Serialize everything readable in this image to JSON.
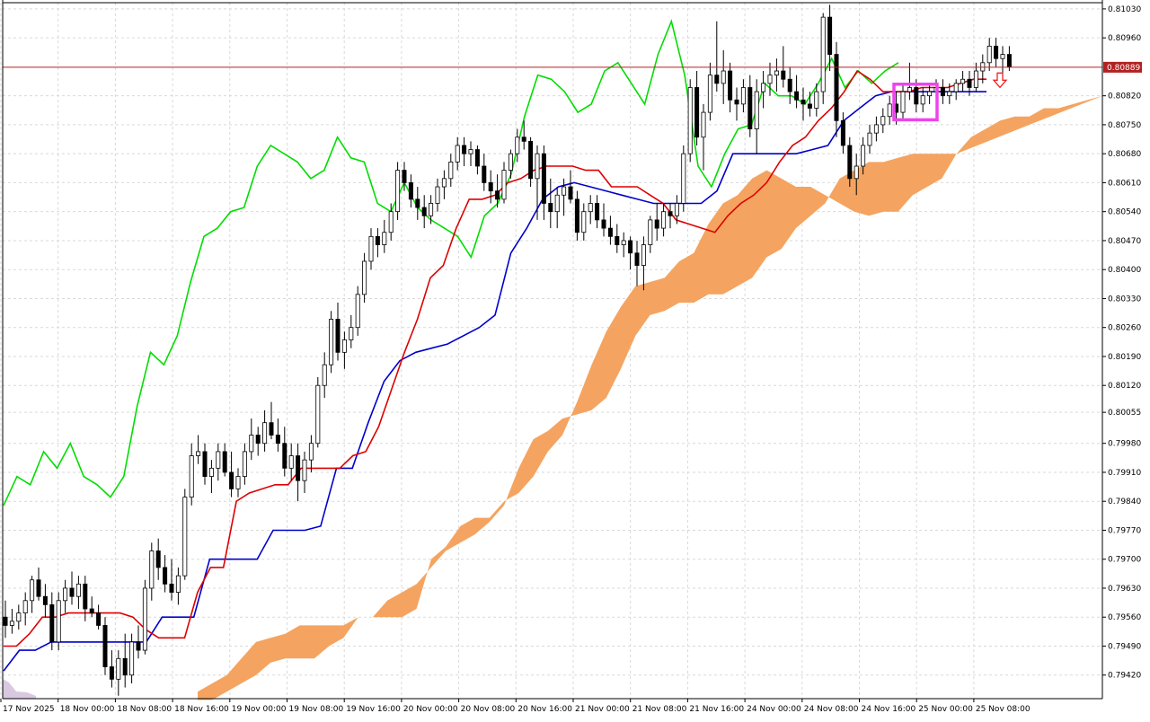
{
  "chart_data": {
    "type": "candlestick",
    "y_axis": {
      "ticks": [
        0.8103,
        0.8096,
        0.8082,
        0.8075,
        0.8068,
        0.8061,
        0.8054,
        0.8047,
        0.804,
        0.8033,
        0.8026,
        0.8019,
        0.8012,
        0.80055,
        0.7998,
        0.7991,
        0.7984,
        0.7977,
        0.797,
        0.7963,
        0.7956,
        0.7949,
        0.7942
      ],
      "tick_labels": [
        "0.81030",
        "0.80960",
        "0.80820",
        "0.80750",
        "0.80680",
        "0.80610",
        "0.80540",
        "0.80470",
        "0.80400",
        "0.80330",
        "0.80260",
        "0.80190",
        "0.80120",
        "0.80055",
        "0.79980",
        "0.79910",
        "0.79840",
        "0.79770",
        "0.79700",
        "0.79630",
        "0.79560",
        "0.79490",
        "0.79420"
      ],
      "range": [
        0.79363,
        0.81045
      ]
    },
    "x_axis": {
      "tick_labels": [
        "17 Nov 2025",
        "18 Nov 00:00",
        "18 Nov 08:00",
        "18 Nov 16:00",
        "19 Nov 00:00",
        "19 Nov 08:00",
        "19 Nov 16:00",
        "20 Nov 00:00",
        "20 Nov 08:00",
        "20 Nov 16:00",
        "21 Nov 00:00",
        "21 Nov 08:00",
        "21 Nov 16:00",
        "24 Nov 00:00",
        "24 Nov 08:00",
        "24 Nov 16:00",
        "25 Nov 00:00",
        "25 Nov 08:00"
      ]
    },
    "current_price": {
      "value": 0.80889,
      "label": "0.80889",
      "color": "#b22222"
    },
    "grid": true,
    "candles": [
      [
        0.7956,
        0.796,
        0.7951,
        0.7954
      ],
      [
        0.7954,
        0.7958,
        0.7952,
        0.7955
      ],
      [
        0.7955,
        0.7959,
        0.7953,
        0.7957
      ],
      [
        0.7957,
        0.7962,
        0.7954,
        0.796
      ],
      [
        0.796,
        0.7966,
        0.7957,
        0.7965
      ],
      [
        0.7965,
        0.7968,
        0.796,
        0.7961
      ],
      [
        0.7961,
        0.7964,
        0.7956,
        0.7959
      ],
      [
        0.7959,
        0.7962,
        0.7948,
        0.795
      ],
      [
        0.795,
        0.7962,
        0.7948,
        0.796
      ],
      [
        0.796,
        0.7965,
        0.7957,
        0.7963
      ],
      [
        0.7963,
        0.7967,
        0.7959,
        0.7961
      ],
      [
        0.7961,
        0.7966,
        0.7958,
        0.7964
      ],
      [
        0.7964,
        0.7966,
        0.7955,
        0.7958
      ],
      [
        0.7958,
        0.7961,
        0.7956,
        0.7957
      ],
      [
        0.7957,
        0.7959,
        0.7953,
        0.7954
      ],
      [
        0.7954,
        0.7956,
        0.7942,
        0.7944
      ],
      [
        0.7944,
        0.7948,
        0.7939,
        0.7941
      ],
      [
        0.7941,
        0.7948,
        0.7937,
        0.7946
      ],
      [
        0.7946,
        0.7952,
        0.7939,
        0.7942
      ],
      [
        0.7942,
        0.7952,
        0.794,
        0.795
      ],
      [
        0.795,
        0.7954,
        0.7946,
        0.7948
      ],
      [
        0.7948,
        0.7965,
        0.7947,
        0.7963
      ],
      [
        0.7963,
        0.7974,
        0.796,
        0.7972
      ],
      [
        0.7972,
        0.7975,
        0.7965,
        0.7968
      ],
      [
        0.7968,
        0.7971,
        0.7962,
        0.7964
      ],
      [
        0.7964,
        0.797,
        0.796,
        0.7962
      ],
      [
        0.7962,
        0.7968,
        0.7959,
        0.7966
      ],
      [
        0.7966,
        0.7987,
        0.7965,
        0.7985
      ],
      [
        0.7985,
        0.7998,
        0.7983,
        0.7995
      ],
      [
        0.7995,
        0.8,
        0.7993,
        0.7996
      ],
      [
        0.7996,
        0.7998,
        0.7988,
        0.799
      ],
      [
        0.799,
        0.7994,
        0.7986,
        0.7992
      ],
      [
        0.7992,
        0.7998,
        0.7989,
        0.7996
      ],
      [
        0.7996,
        0.7998,
        0.799,
        0.7991
      ],
      [
        0.7991,
        0.7996,
        0.7985,
        0.7987
      ],
      [
        0.7987,
        0.7992,
        0.7985,
        0.799
      ],
      [
        0.799,
        0.7998,
        0.7988,
        0.7996
      ],
      [
        0.7996,
        0.8004,
        0.7994,
        0.8
      ],
      [
        0.8,
        0.8002,
        0.7995,
        0.7998
      ],
      [
        0.7998,
        0.8006,
        0.7996,
        0.8003
      ],
      [
        0.8003,
        0.8008,
        0.7999,
        0.8
      ],
      [
        0.8,
        0.8004,
        0.7996,
        0.7998
      ],
      [
        0.7998,
        0.8002,
        0.799,
        0.7992
      ],
      [
        0.7992,
        0.7998,
        0.7989,
        0.7995
      ],
      [
        0.7995,
        0.7998,
        0.7984,
        0.7989
      ],
      [
        0.7989,
        0.7996,
        0.7986,
        0.7994
      ],
      [
        0.7994,
        0.8,
        0.7991,
        0.7998
      ],
      [
        0.7998,
        0.8014,
        0.7997,
        0.8012
      ],
      [
        0.8012,
        0.802,
        0.8009,
        0.8017
      ],
      [
        0.8017,
        0.803,
        0.8015,
        0.8028
      ],
      [
        0.8028,
        0.8032,
        0.8018,
        0.802
      ],
      [
        0.802,
        0.8025,
        0.8016,
        0.8023
      ],
      [
        0.8023,
        0.8029,
        0.8021,
        0.8026
      ],
      [
        0.8026,
        0.8036,
        0.8024,
        0.8034
      ],
      [
        0.8034,
        0.8044,
        0.8032,
        0.8042
      ],
      [
        0.8042,
        0.805,
        0.804,
        0.8048
      ],
      [
        0.8048,
        0.805,
        0.8043,
        0.8046
      ],
      [
        0.8046,
        0.8052,
        0.8044,
        0.8049
      ],
      [
        0.8049,
        0.8056,
        0.8047,
        0.8054
      ],
      [
        0.8054,
        0.8066,
        0.8052,
        0.8064
      ],
      [
        0.8064,
        0.8066,
        0.8059,
        0.8061
      ],
      [
        0.8061,
        0.8063,
        0.8055,
        0.8057
      ],
      [
        0.8057,
        0.806,
        0.8052,
        0.8055
      ],
      [
        0.8055,
        0.8058,
        0.805,
        0.8053
      ],
      [
        0.8053,
        0.8058,
        0.8051,
        0.8056
      ],
      [
        0.8056,
        0.8062,
        0.8054,
        0.806
      ],
      [
        0.806,
        0.8064,
        0.8057,
        0.8062
      ],
      [
        0.8062,
        0.8068,
        0.806,
        0.8066
      ],
      [
        0.8066,
        0.8072,
        0.8064,
        0.807
      ],
      [
        0.807,
        0.8072,
        0.8065,
        0.8068
      ],
      [
        0.8068,
        0.8071,
        0.8065,
        0.8069
      ],
      [
        0.8069,
        0.807,
        0.8063,
        0.8065
      ],
      [
        0.8065,
        0.8068,
        0.8059,
        0.8061
      ],
      [
        0.8061,
        0.8064,
        0.8056,
        0.8059
      ],
      [
        0.8059,
        0.8063,
        0.8055,
        0.8057
      ],
      [
        0.8057,
        0.8066,
        0.8056,
        0.8064
      ],
      [
        0.8064,
        0.8069,
        0.8062,
        0.8068
      ],
      [
        0.8068,
        0.8074,
        0.8066,
        0.8072
      ],
      [
        0.8072,
        0.8076,
        0.8069,
        0.8071
      ],
      [
        0.8071,
        0.8072,
        0.806,
        0.8062
      ],
      [
        0.8062,
        0.807,
        0.8052,
        0.8068
      ],
      [
        0.8068,
        0.807,
        0.8052,
        0.8056
      ],
      [
        0.8056,
        0.8062,
        0.805,
        0.8054
      ],
      [
        0.8054,
        0.806,
        0.805,
        0.8058
      ],
      [
        0.8058,
        0.8062,
        0.8053,
        0.806
      ],
      [
        0.806,
        0.8064,
        0.8056,
        0.8057
      ],
      [
        0.8057,
        0.8059,
        0.8047,
        0.8049
      ],
      [
        0.8049,
        0.8056,
        0.8047,
        0.8054
      ],
      [
        0.8054,
        0.8058,
        0.8051,
        0.8056
      ],
      [
        0.8056,
        0.8058,
        0.805,
        0.8052
      ],
      [
        0.8052,
        0.8056,
        0.8048,
        0.805
      ],
      [
        0.805,
        0.8053,
        0.8046,
        0.8048
      ],
      [
        0.8048,
        0.8051,
        0.8044,
        0.8046
      ],
      [
        0.8046,
        0.8049,
        0.8043,
        0.8047
      ],
      [
        0.8047,
        0.8048,
        0.804,
        0.8044
      ],
      [
        0.8044,
        0.8047,
        0.8036,
        0.8041
      ],
      [
        0.8041,
        0.8048,
        0.8035,
        0.8046
      ],
      [
        0.8046,
        0.8053,
        0.8044,
        0.8052
      ],
      [
        0.8052,
        0.8056,
        0.8047,
        0.805
      ],
      [
        0.805,
        0.8056,
        0.8048,
        0.8054
      ],
      [
        0.8054,
        0.8056,
        0.805,
        0.8053
      ],
      [
        0.8053,
        0.8058,
        0.8051,
        0.8056
      ],
      [
        0.8056,
        0.807,
        0.8054,
        0.8068
      ],
      [
        0.8068,
        0.8086,
        0.8066,
        0.8084
      ],
      [
        0.8084,
        0.8088,
        0.807,
        0.8072
      ],
      [
        0.8072,
        0.808,
        0.8064,
        0.8078
      ],
      [
        0.8078,
        0.809,
        0.8076,
        0.8087
      ],
      [
        0.8087,
        0.81,
        0.8083,
        0.8085
      ],
      [
        0.8085,
        0.8093,
        0.808,
        0.8088
      ],
      [
        0.8088,
        0.809,
        0.8078,
        0.8081
      ],
      [
        0.8081,
        0.8084,
        0.8076,
        0.808
      ],
      [
        0.808,
        0.8086,
        0.8078,
        0.8084
      ],
      [
        0.8084,
        0.8087,
        0.8072,
        0.8074
      ],
      [
        0.8074,
        0.8086,
        0.8068,
        0.8083
      ],
      [
        0.8083,
        0.8088,
        0.8079,
        0.8085
      ],
      [
        0.8085,
        0.809,
        0.8082,
        0.8087
      ],
      [
        0.8087,
        0.8091,
        0.8083,
        0.8088
      ],
      [
        0.8088,
        0.8094,
        0.8084,
        0.8086
      ],
      [
        0.8086,
        0.8089,
        0.808,
        0.8083
      ],
      [
        0.8083,
        0.8087,
        0.8079,
        0.8081
      ],
      [
        0.8081,
        0.8084,
        0.8076,
        0.808
      ],
      [
        0.808,
        0.8083,
        0.8077,
        0.8079
      ],
      [
        0.8079,
        0.8085,
        0.8077,
        0.8083
      ],
      [
        0.8083,
        0.8102,
        0.808,
        0.8101
      ],
      [
        0.8101,
        0.8104,
        0.8088,
        0.8092
      ],
      [
        0.8092,
        0.8095,
        0.8072,
        0.8076
      ],
      [
        0.8076,
        0.8078,
        0.8068,
        0.807
      ],
      [
        0.807,
        0.8072,
        0.806,
        0.8062
      ],
      [
        0.8062,
        0.8068,
        0.8058,
        0.8065
      ],
      [
        0.8065,
        0.8072,
        0.8063,
        0.807
      ],
      [
        0.807,
        0.8075,
        0.8068,
        0.8073
      ],
      [
        0.8073,
        0.8077,
        0.8071,
        0.8075
      ],
      [
        0.8075,
        0.8079,
        0.8073,
        0.8077
      ],
      [
        0.8077,
        0.8082,
        0.8075,
        0.808
      ],
      [
        0.808,
        0.8083,
        0.8075,
        0.8078
      ],
      [
        0.8078,
        0.8085,
        0.8076,
        0.8083
      ],
      [
        0.8083,
        0.809,
        0.8081,
        0.8084
      ],
      [
        0.8084,
        0.8086,
        0.8078,
        0.808
      ],
      [
        0.808,
        0.8084,
        0.8078,
        0.8082
      ],
      [
        0.8082,
        0.8085,
        0.808,
        0.8083
      ],
      [
        0.8083,
        0.8086,
        0.8081,
        0.8084
      ],
      [
        0.8084,
        0.8086,
        0.808,
        0.8082
      ],
      [
        0.8082,
        0.8085,
        0.808,
        0.8083
      ],
      [
        0.8083,
        0.8086,
        0.8081,
        0.8085
      ],
      [
        0.8085,
        0.8088,
        0.8083,
        0.8086
      ],
      [
        0.8086,
        0.8088,
        0.8082,
        0.8084
      ],
      [
        0.8084,
        0.809,
        0.8083,
        0.8088
      ],
      [
        0.8088,
        0.8092,
        0.8085,
        0.809
      ],
      [
        0.809,
        0.8096,
        0.8088,
        0.8094
      ],
      [
        0.8094,
        0.8096,
        0.8089,
        0.8091
      ],
      [
        0.8091,
        0.8094,
        0.8087,
        0.8092
      ],
      [
        0.8092,
        0.8094,
        0.8088,
        0.8089
      ]
    ],
    "tenkan": [
      0.7949,
      0.7949,
      0.7952,
      0.7956,
      0.7956,
      0.7957,
      0.7957,
      0.7957,
      0.7957,
      0.7957,
      0.7956,
      0.7953,
      0.7951,
      0.7951,
      0.7951,
      0.7962,
      0.7968,
      0.7968,
      0.7984,
      0.7986,
      0.7987,
      0.7988,
      0.7988,
      0.7992,
      0.7992,
      0.7992,
      0.7992,
      0.7995,
      0.7996,
      0.8002,
      0.8011,
      0.802,
      0.8028,
      0.8038,
      0.8041,
      0.805,
      0.8057,
      0.8057,
      0.8058,
      0.8061,
      0.8062,
      0.8064,
      0.8065,
      0.8065,
      0.8065,
      0.8064,
      0.8064,
      0.806,
      0.806,
      0.806,
      0.8058,
      0.8056,
      0.8052,
      0.8051,
      0.805,
      0.8049,
      0.8053,
      0.8056,
      0.8058,
      0.8061,
      0.8066,
      0.807,
      0.8072,
      0.8076,
      0.8079,
      0.8083,
      0.8088,
      0.8086,
      0.8083,
      0.8083,
      0.8083,
      0.8084,
      0.8084,
      0.8084,
      0.8085,
      0.8086,
      0.8086
    ],
    "kijun": [
      0.7943,
      0.7948,
      0.7948,
      0.795,
      0.795,
      0.795,
      0.795,
      0.795,
      0.795,
      0.795,
      0.7956,
      0.7956,
      0.7956,
      0.797,
      0.797,
      0.797,
      0.797,
      0.7977,
      0.7977,
      0.7977,
      0.7978,
      0.7992,
      0.7992,
      0.8003,
      0.8013,
      0.8018,
      0.802,
      0.8021,
      0.8022,
      0.8024,
      0.8026,
      0.8029,
      0.8044,
      0.805,
      0.8057,
      0.806,
      0.8061,
      0.806,
      0.8059,
      0.8058,
      0.8057,
      0.8056,
      0.8056,
      0.8056,
      0.8056,
      0.8059,
      0.8068,
      0.8068,
      0.8068,
      0.8068,
      0.8068,
      0.8069,
      0.807,
      0.8076,
      0.8079,
      0.8082,
      0.8083,
      0.8083,
      0.8083,
      0.8083,
      0.8083,
      0.8083,
      0.8083
    ],
    "chikou": [
      0.7983,
      0.799,
      0.7988,
      0.7996,
      0.7992,
      0.7998,
      0.799,
      0.7988,
      0.7985,
      0.799,
      0.8007,
      0.802,
      0.8017,
      0.8024,
      0.8037,
      0.8048,
      0.805,
      0.8054,
      0.8055,
      0.8065,
      0.807,
      0.8068,
      0.8066,
      0.8062,
      0.8064,
      0.8072,
      0.8067,
      0.8066,
      0.8056,
      0.8054,
      0.8061,
      0.8055,
      0.8052,
      0.805,
      0.8048,
      0.8043,
      0.8053,
      0.8056,
      0.8063,
      0.8077,
      0.8087,
      0.8086,
      0.8083,
      0.8078,
      0.808,
      0.8088,
      0.809,
      0.8085,
      0.808,
      0.8092,
      0.81,
      0.8087,
      0.8065,
      0.806,
      0.8068,
      0.8074,
      0.8075,
      0.8085,
      0.8082,
      0.8082,
      0.808,
      0.8085,
      0.8091,
      0.8084,
      0.8088,
      0.8085,
      0.8088,
      0.809
    ],
    "cloud_upper": [
      0.7938,
      0.794,
      0.7942,
      0.7946,
      0.795,
      0.7951,
      0.7952,
      0.7954,
      0.7954,
      0.7954,
      0.7954,
      0.7956,
      0.7956,
      0.7956,
      0.7956,
      0.7958,
      0.797,
      0.7973,
      0.7978,
      0.798,
      0.798,
      0.7984,
      0.7986,
      0.799,
      0.7996,
      0.8,
      0.8008,
      0.8017,
      0.8025,
      0.8031,
      0.8036,
      0.8037,
      0.8038,
      0.8042,
      0.8044,
      0.8051,
      0.8056,
      0.8058,
      0.8062,
      0.8064,
      0.8062,
      0.806,
      0.806,
      0.8058,
      0.8056,
      0.8054,
      0.8053,
      0.8054,
      0.8054,
      0.8058,
      0.806,
      0.8062,
      0.8068,
      0.8072,
      0.8074,
      0.8076,
      0.8077,
      0.8077,
      0.8079,
      0.8079,
      0.808,
      0.8081,
      0.8082
    ],
    "cloud_lower": [
      0.7936,
      0.7936,
      0.7938,
      0.794,
      0.7942,
      0.7945,
      0.7946,
      0.7946,
      0.7946,
      0.7949,
      0.7951,
      0.7956,
      0.7956,
      0.796,
      0.7962,
      0.7964,
      0.7968,
      0.7972,
      0.7974,
      0.7976,
      0.7979,
      0.7983,
      0.7992,
      0.7999,
      0.8001,
      0.8004,
      0.8005,
      0.8006,
      0.8009,
      0.8016,
      0.8024,
      0.8029,
      0.803,
      0.8032,
      0.8032,
      0.8034,
      0.8034,
      0.8036,
      0.8038,
      0.8043,
      0.8045,
      0.805,
      0.8053,
      0.8056,
      0.8062,
      0.8064,
      0.8066,
      0.8066,
      0.8067,
      0.8068,
      0.8068,
      0.8068,
      0.8068
    ]
  }
}
